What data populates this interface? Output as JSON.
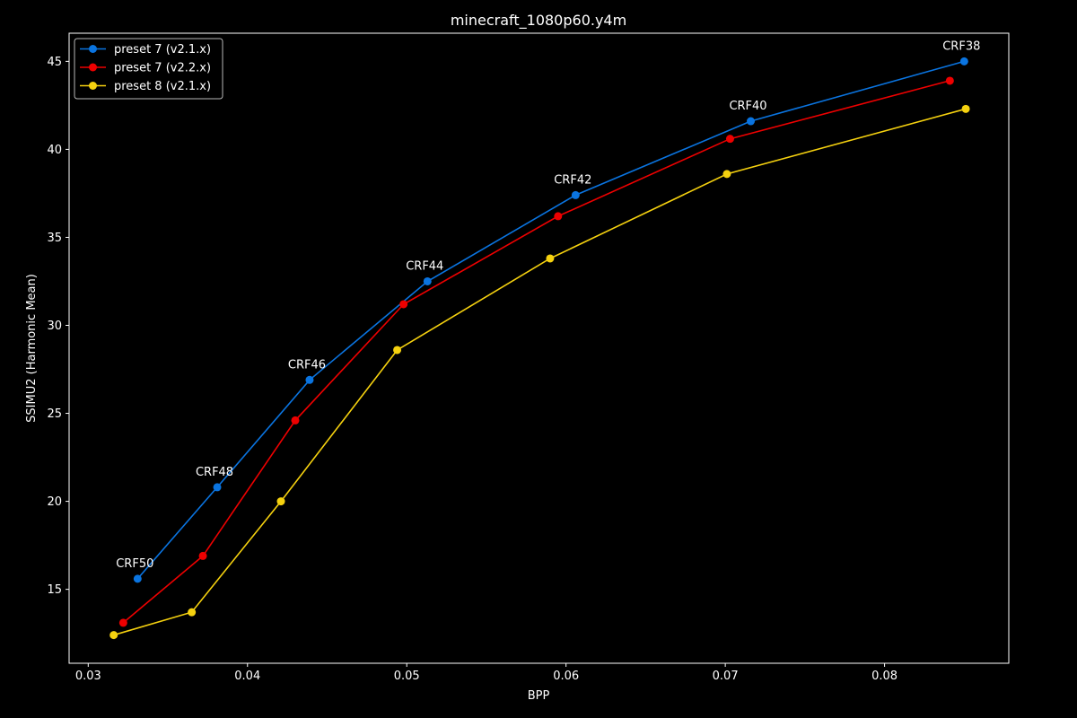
{
  "chart_data": {
    "type": "line",
    "title": "minecraft_1080p60.y4m",
    "xlabel": "BPP",
    "ylabel": "SSIMU2 (Harmonic Mean)",
    "xlim": [
      0.0288,
      0.0878
    ],
    "ylim": [
      10.8,
      46.6
    ],
    "x_ticks": [
      0.03,
      0.04,
      0.05,
      0.06,
      0.07,
      0.08
    ],
    "x_tick_labels": [
      "0.03",
      "0.04",
      "0.05",
      "0.06",
      "0.07",
      "0.08"
    ],
    "y_ticks": [
      15,
      20,
      25,
      30,
      35,
      40,
      45
    ],
    "y_tick_labels": [
      "15",
      "20",
      "25",
      "30",
      "35",
      "40",
      "45"
    ],
    "grid": false,
    "legend_position": "top-left",
    "background": "#000000",
    "foreground": "#ffffff",
    "series": [
      {
        "name": "preset 7 (v2.1.x)",
        "color": "#0a74e0",
        "x": [
          0.0331,
          0.0381,
          0.0439,
          0.0513,
          0.0606,
          0.0716,
          0.085
        ],
        "y": [
          15.6,
          20.8,
          26.9,
          32.5,
          37.4,
          41.6,
          45.0
        ]
      },
      {
        "name": "preset 7 (v2.2.x)",
        "color": "#ee0000",
        "x": [
          0.0322,
          0.0372,
          0.043,
          0.0498,
          0.0595,
          0.0703,
          0.0841
        ],
        "y": [
          13.1,
          16.9,
          24.6,
          31.2,
          36.2,
          40.6,
          43.9
        ]
      },
      {
        "name": "preset 8 (v2.1.x)",
        "color": "#f5d10f",
        "x": [
          0.0316,
          0.0365,
          0.0421,
          0.0494,
          0.059,
          0.0701,
          0.0851
        ],
        "y": [
          12.4,
          13.7,
          20.0,
          28.6,
          33.8,
          38.6,
          42.3
        ]
      }
    ],
    "annotations": [
      {
        "text": "CRF50",
        "x": 0.0331,
        "y": 15.6
      },
      {
        "text": "CRF48",
        "x": 0.0381,
        "y": 20.8
      },
      {
        "text": "CRF46",
        "x": 0.0439,
        "y": 26.9
      },
      {
        "text": "CRF44",
        "x": 0.0513,
        "y": 32.5
      },
      {
        "text": "CRF42",
        "x": 0.0606,
        "y": 37.4
      },
      {
        "text": "CRF40",
        "x": 0.0716,
        "y": 41.6
      },
      {
        "text": "CRF38",
        "x": 0.085,
        "y": 45.0
      }
    ]
  }
}
